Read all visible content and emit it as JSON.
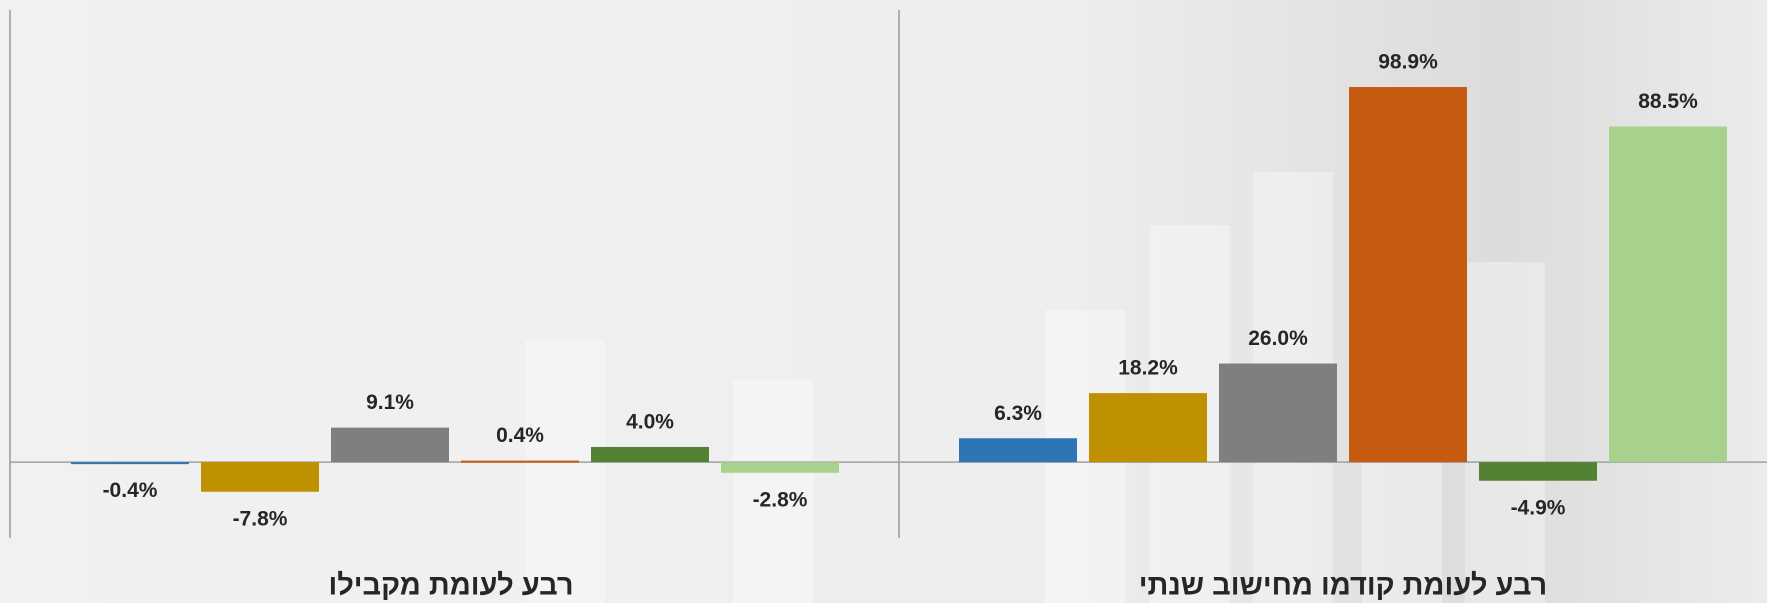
{
  "chart_data": [
    {
      "type": "bar",
      "title": "רבע לעומת מקבילו",
      "categories": [
        null,
        null,
        null,
        null,
        null,
        null
      ],
      "values": [
        -0.4,
        -7.8,
        9.1,
        0.4,
        4.0,
        -2.8
      ],
      "value_labels": [
        "-0.4%",
        "-7.8%",
        "9.1%",
        "0.4%",
        "4.0%",
        "-2.8%"
      ],
      "colors": [
        "#2e75b6",
        "#bf9000",
        "#7f7f7f",
        "#c55a11",
        "#548235",
        "#a9d18e"
      ],
      "ylim": [
        -20,
        120
      ]
    },
    {
      "type": "bar",
      "title": "רבע לעומת קודמו מחישוב שנתי",
      "categories": [
        null,
        null,
        null,
        null,
        null,
        null
      ],
      "values": [
        6.3,
        18.2,
        26.0,
        98.9,
        -4.9,
        88.5
      ],
      "value_labels": [
        "6.3%",
        "18.2%",
        "26.0%",
        "98.9%",
        "-4.9%",
        "88.5%"
      ],
      "colors": [
        "#2e75b6",
        "#bf9000",
        "#7f7f7f",
        "#c55a11",
        "#548235",
        "#a9d18e"
      ],
      "ylim": [
        -20,
        120
      ]
    }
  ]
}
